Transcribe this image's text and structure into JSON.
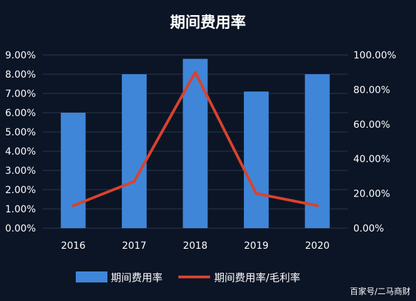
{
  "chart_data": {
    "type": "bar",
    "title": "期间费用率",
    "categories": [
      "2016",
      "2017",
      "2018",
      "2019",
      "2020"
    ],
    "series": [
      {
        "name": "期间费用率",
        "type": "bar",
        "axis": "left",
        "values": [
          0.06,
          0.08,
          0.088,
          0.071,
          0.08
        ],
        "color": "#3f86d8"
      },
      {
        "name": "期间费用率/毛利率",
        "type": "line",
        "axis": "right",
        "values": [
          0.13,
          0.27,
          0.9,
          0.2,
          0.13
        ],
        "color": "#d9422e"
      }
    ],
    "y_left": {
      "ylim": [
        0,
        0.09
      ],
      "ticks": [
        0,
        0.01,
        0.02,
        0.03,
        0.04,
        0.05,
        0.06,
        0.07,
        0.08,
        0.09
      ],
      "tick_labels": [
        "0.00%",
        "1.00%",
        "2.00%",
        "3.00%",
        "4.00%",
        "5.00%",
        "6.00%",
        "7.00%",
        "8.00%",
        "9.00%"
      ]
    },
    "y_right": {
      "ylim": [
        0,
        1.0
      ],
      "ticks": [
        0,
        0.2,
        0.4,
        0.6,
        0.8,
        1.0
      ],
      "tick_labels": [
        "0.00%",
        "20.00%",
        "40.00%",
        "60.00%",
        "80.00%",
        "100.00%"
      ]
    },
    "grid": true,
    "legend": "bottom",
    "background_color": "#0c1526"
  },
  "watermark": "百家号/二马商财"
}
